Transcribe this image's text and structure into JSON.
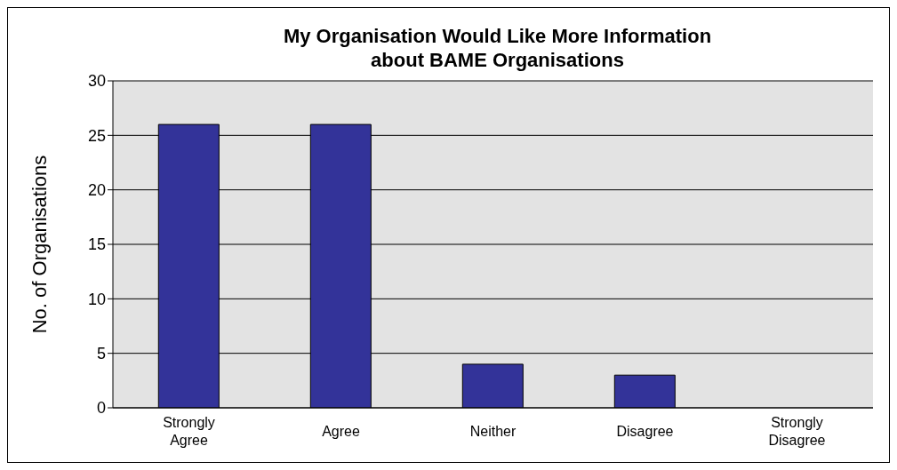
{
  "chart_data": {
    "type": "bar",
    "title": "My Organisation Would Like More Information\nabout BAME Organisations",
    "ylabel": "No. of Organisations",
    "categories": [
      "Strongly Agree",
      "Agree",
      "Neither",
      "Disagree",
      "Strongly Disagree"
    ],
    "values": [
      26,
      26,
      4,
      3,
      0
    ],
    "color": "#333399",
    "ylim": [
      0,
      30
    ],
    "yticks": [
      0,
      5,
      10,
      15,
      20,
      25,
      30
    ],
    "grid": "y",
    "legend": false
  }
}
